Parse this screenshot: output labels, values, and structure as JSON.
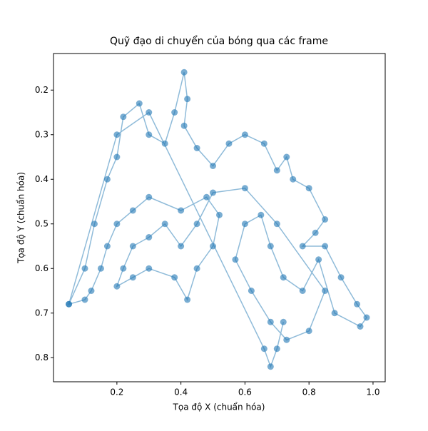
{
  "chart_data": {
    "type": "line",
    "title": "Quỹ đạo di chuyển của bóng qua các frame",
    "x_label": "Tọa độ X (chuẩn hóa)",
    "y_label": "Tọa độ Y (chuẩn hóa)",
    "color": "#1f77b4",
    "markers": true,
    "y_inverted": true,
    "x": [
      0.05,
      0.1,
      0.13,
      0.17,
      0.2,
      0.22,
      0.27,
      0.3,
      0.35,
      0.38,
      0.41,
      0.42,
      0.41,
      0.45,
      0.5,
      0.55,
      0.6,
      0.66,
      0.7,
      0.73,
      0.75,
      0.8,
      0.85,
      0.82,
      0.78,
      0.85,
      0.9,
      0.95,
      0.98,
      0.96,
      0.88,
      0.83,
      0.78,
      0.72,
      0.68,
      0.65,
      0.6,
      0.57,
      0.62,
      0.68,
      0.73,
      0.8,
      0.85,
      0.7,
      0.6,
      0.5,
      0.45,
      0.4,
      0.35,
      0.3,
      0.25,
      0.22,
      0.2,
      0.25,
      0.3,
      0.38,
      0.42,
      0.45,
      0.5,
      0.52,
      0.48,
      0.4,
      0.3,
      0.25,
      0.2,
      0.17,
      0.15,
      0.12,
      0.1,
      0.05,
      0.2,
      0.3,
      0.66,
      0.68,
      0.7,
      0.72
    ],
    "values": [
      0.68,
      0.6,
      0.5,
      0.4,
      0.35,
      0.26,
      0.23,
      0.3,
      0.32,
      0.25,
      0.16,
      0.22,
      0.28,
      0.33,
      0.37,
      0.32,
      0.3,
      0.32,
      0.38,
      0.35,
      0.4,
      0.42,
      0.49,
      0.52,
      0.55,
      0.55,
      0.62,
      0.68,
      0.71,
      0.73,
      0.7,
      0.58,
      0.65,
      0.62,
      0.55,
      0.48,
      0.5,
      0.58,
      0.65,
      0.72,
      0.76,
      0.74,
      0.65,
      0.5,
      0.42,
      0.43,
      0.5,
      0.55,
      0.5,
      0.53,
      0.55,
      0.6,
      0.64,
      0.62,
      0.6,
      0.62,
      0.67,
      0.6,
      0.55,
      0.48,
      0.44,
      0.47,
      0.44,
      0.47,
      0.5,
      0.55,
      0.6,
      0.65,
      0.67,
      0.68,
      0.3,
      0.25,
      0.78,
      0.82,
      0.78,
      0.72
    ],
    "xlim": [
      0.002,
      1.038
    ],
    "ylim": [
      0.854,
      0.118
    ],
    "xticks": [
      0.2,
      0.4,
      0.6,
      0.8,
      {
        "value": 1,
        "label": "1.0"
      }
    ],
    "yticks": [
      0.2,
      0.3,
      0.4,
      0.5,
      0.6,
      0.7,
      0.8
    ]
  }
}
